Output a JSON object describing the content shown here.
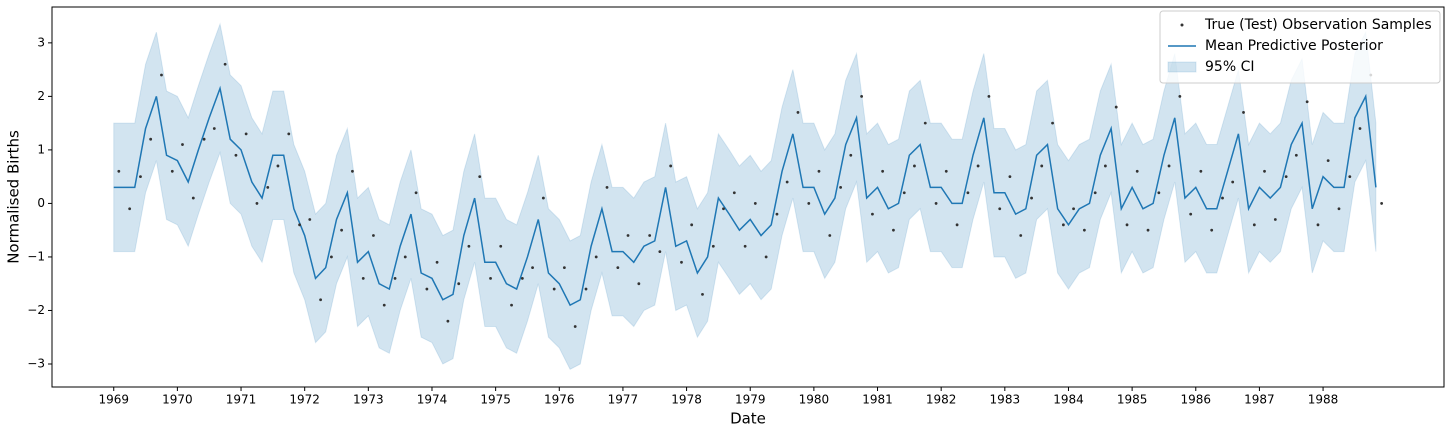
{
  "chart_data": {
    "type": "line",
    "xlabel": "Date",
    "ylabel": "Normalised Births",
    "xlim": [
      1968.03,
      1989.9
    ],
    "ylim": [
      -3.43,
      3.67
    ],
    "xticks": [
      1969,
      1970,
      1971,
      1972,
      1973,
      1974,
      1975,
      1976,
      1977,
      1978,
      1979,
      1980,
      1981,
      1982,
      1983,
      1984,
      1985,
      1986,
      1987,
      1988
    ],
    "yticks": [
      {
        "value": -3,
        "label": "−3"
      },
      {
        "value": -2,
        "label": "−2"
      },
      {
        "value": -1,
        "label": "−1"
      },
      0,
      1,
      2,
      3
    ],
    "legend": "upper right",
    "series": [
      {
        "name": "True (Test) Observation Samples",
        "kind": "scatter",
        "color": "#333333",
        "x": [
          1969.08,
          1969.25,
          1969.42,
          1969.58,
          1969.75,
          1969.92,
          1970.08,
          1970.25,
          1970.42,
          1970.58,
          1970.75,
          1970.92,
          1971.08,
          1971.25,
          1971.42,
          1971.58,
          1971.75,
          1971.92,
          1972.08,
          1972.25,
          1972.42,
          1972.58,
          1972.75,
          1972.92,
          1973.08,
          1973.25,
          1973.42,
          1973.58,
          1973.75,
          1973.92,
          1974.08,
          1974.25,
          1974.42,
          1974.58,
          1974.75,
          1974.92,
          1975.08,
          1975.25,
          1975.42,
          1975.58,
          1975.75,
          1975.92,
          1976.08,
          1976.25,
          1976.42,
          1976.58,
          1976.75,
          1976.92,
          1977.08,
          1977.25,
          1977.42,
          1977.58,
          1977.75,
          1977.92,
          1978.08,
          1978.25,
          1978.42,
          1978.58,
          1978.75,
          1978.92,
          1979.08,
          1979.25,
          1979.42,
          1979.58,
          1979.75,
          1979.92,
          1980.08,
          1980.25,
          1980.42,
          1980.58,
          1980.75,
          1980.92,
          1981.08,
          1981.25,
          1981.42,
          1981.58,
          1981.75,
          1981.92,
          1982.08,
          1982.25,
          1982.42,
          1982.58,
          1982.75,
          1982.92,
          1983.08,
          1983.25,
          1983.42,
          1983.58,
          1983.75,
          1983.92,
          1984.08,
          1984.25,
          1984.42,
          1984.58,
          1984.75,
          1984.92,
          1985.08,
          1985.25,
          1985.42,
          1985.58,
          1985.75,
          1985.92,
          1986.08,
          1986.25,
          1986.42,
          1986.58,
          1986.75,
          1986.92,
          1987.08,
          1987.25,
          1987.42,
          1987.58,
          1987.75,
          1987.92,
          1988.08,
          1988.25,
          1988.42,
          1988.58,
          1988.75,
          1988.92
        ],
        "values": [
          0.6,
          -0.1,
          0.5,
          1.2,
          2.4,
          0.6,
          1.1,
          0.1,
          1.2,
          1.4,
          2.6,
          0.9,
          1.3,
          0.0,
          0.3,
          0.7,
          1.3,
          -0.4,
          -0.3,
          -1.8,
          -1.0,
          -0.5,
          0.6,
          -1.4,
          -0.6,
          -1.9,
          -1.4,
          -1.0,
          0.2,
          -1.6,
          -1.1,
          -2.2,
          -1.5,
          -0.8,
          0.5,
          -1.4,
          -0.8,
          -1.9,
          -1.4,
          -1.2,
          0.1,
          -1.6,
          -1.2,
          -2.3,
          -1.6,
          -1.0,
          0.3,
          -1.2,
          -0.6,
          -1.5,
          -0.6,
          -0.9,
          0.7,
          -1.1,
          -0.4,
          -1.7,
          -0.8,
          -0.1,
          0.2,
          -0.8,
          0.0,
          -1.0,
          -0.2,
          0.4,
          1.7,
          0.0,
          0.6,
          -0.6,
          0.3,
          0.9,
          2.0,
          -0.2,
          0.6,
          -0.5,
          0.2,
          0.7,
          1.5,
          0.0,
          0.6,
          -0.4,
          0.2,
          0.7,
          2.0,
          -0.1,
          0.5,
          -0.6,
          0.1,
          0.7,
          1.5,
          -0.4,
          -0.1,
          -0.5,
          0.2,
          0.7,
          1.8,
          -0.4,
          0.6,
          -0.5,
          0.2,
          0.7,
          2.0,
          -0.2,
          0.6,
          -0.5,
          0.1,
          0.4,
          1.7,
          -0.4,
          0.6,
          -0.3,
          0.5,
          0.9,
          1.9,
          -0.4,
          0.8,
          -0.1,
          0.5,
          1.4,
          2.4,
          0.0
        ]
      },
      {
        "name": "Mean Predictive Posterior",
        "kind": "line",
        "color": "#1f77b4",
        "x": [
          1969,
          1969.17,
          1969.33,
          1969.5,
          1969.67,
          1969.83,
          1970,
          1970.17,
          1970.33,
          1970.5,
          1970.67,
          1970.83,
          1971,
          1971.17,
          1971.33,
          1971.5,
          1971.67,
          1971.83,
          1972,
          1972.17,
          1972.33,
          1972.5,
          1972.67,
          1972.83,
          1973,
          1973.17,
          1973.33,
          1973.5,
          1973.67,
          1973.83,
          1974,
          1974.17,
          1974.33,
          1974.5,
          1974.67,
          1974.83,
          1975,
          1975.17,
          1975.33,
          1975.5,
          1975.67,
          1975.83,
          1976,
          1976.17,
          1976.33,
          1976.5,
          1976.67,
          1976.83,
          1977,
          1977.17,
          1977.33,
          1977.5,
          1977.67,
          1977.83,
          1978,
          1978.17,
          1978.33,
          1978.5,
          1978.67,
          1978.83,
          1979,
          1979.17,
          1979.33,
          1979.5,
          1979.67,
          1979.83,
          1980,
          1980.17,
          1980.33,
          1980.5,
          1980.67,
          1980.83,
          1981,
          1981.17,
          1981.33,
          1981.5,
          1981.67,
          1981.83,
          1982,
          1982.17,
          1982.33,
          1982.5,
          1982.67,
          1982.83,
          1983,
          1983.17,
          1983.33,
          1983.5,
          1983.67,
          1983.83,
          1984,
          1984.17,
          1984.33,
          1984.5,
          1984.67,
          1984.83,
          1985,
          1985.17,
          1985.33,
          1985.5,
          1985.67,
          1985.83,
          1986,
          1986.17,
          1986.33,
          1986.5,
          1986.67,
          1986.83,
          1987,
          1987.17,
          1987.33,
          1987.5,
          1987.67,
          1987.83,
          1988,
          1988.17,
          1988.33,
          1988.5,
          1988.67,
          1988.83
        ],
        "values": [
          0.3,
          0.3,
          0.3,
          1.4,
          2.0,
          0.9,
          0.8,
          0.4,
          1.0,
          1.6,
          2.15,
          1.2,
          1.0,
          0.4,
          0.1,
          0.9,
          0.9,
          -0.1,
          -0.6,
          -1.4,
          -1.2,
          -0.3,
          0.2,
          -1.1,
          -0.9,
          -1.5,
          -1.6,
          -0.8,
          -0.2,
          -1.3,
          -1.4,
          -1.8,
          -1.7,
          -0.6,
          0.1,
          -1.1,
          -1.1,
          -1.5,
          -1.6,
          -1.0,
          -0.3,
          -1.3,
          -1.5,
          -1.9,
          -1.8,
          -0.8,
          -0.1,
          -0.9,
          -0.9,
          -1.1,
          -0.8,
          -0.7,
          0.3,
          -0.8,
          -0.7,
          -1.3,
          -1.0,
          0.1,
          -0.2,
          -0.5,
          -0.3,
          -0.6,
          -0.4,
          0.6,
          1.3,
          0.3,
          0.3,
          -0.2,
          0.1,
          1.1,
          1.6,
          0.1,
          0.3,
          -0.1,
          0.0,
          0.9,
          1.1,
          0.3,
          0.3,
          0.0,
          0.0,
          0.9,
          1.6,
          0.2,
          0.2,
          -0.2,
          -0.1,
          0.9,
          1.1,
          -0.1,
          -0.4,
          -0.1,
          0.0,
          0.9,
          1.4,
          -0.1,
          0.3,
          -0.1,
          0.0,
          0.9,
          1.6,
          0.1,
          0.3,
          -0.1,
          -0.1,
          0.6,
          1.3,
          -0.1,
          0.3,
          0.1,
          0.3,
          1.1,
          1.5,
          -0.1,
          0.5,
          0.3,
          0.3,
          1.6,
          2.0,
          0.3
        ]
      },
      {
        "name": "95% CI",
        "kind": "band",
        "color": "#1f77b4",
        "x": [
          1969,
          1969.17,
          1969.33,
          1969.5,
          1969.67,
          1969.83,
          1970,
          1970.17,
          1970.33,
          1970.5,
          1970.67,
          1970.83,
          1971,
          1971.17,
          1971.33,
          1971.5,
          1971.67,
          1971.83,
          1972,
          1972.17,
          1972.33,
          1972.5,
          1972.67,
          1972.83,
          1973,
          1973.17,
          1973.33,
          1973.5,
          1973.67,
          1973.83,
          1974,
          1974.17,
          1974.33,
          1974.5,
          1974.67,
          1974.83,
          1975,
          1975.17,
          1975.33,
          1975.5,
          1975.67,
          1975.83,
          1976,
          1976.17,
          1976.33,
          1976.5,
          1976.67,
          1976.83,
          1977,
          1977.17,
          1977.33,
          1977.5,
          1977.67,
          1977.83,
          1978,
          1978.17,
          1978.33,
          1978.5,
          1978.67,
          1978.83,
          1979,
          1979.17,
          1979.33,
          1979.5,
          1979.67,
          1979.83,
          1980,
          1980.17,
          1980.33,
          1980.5,
          1980.67,
          1980.83,
          1981,
          1981.17,
          1981.33,
          1981.5,
          1981.67,
          1981.83,
          1982,
          1982.17,
          1982.33,
          1982.5,
          1982.67,
          1982.83,
          1983,
          1983.17,
          1983.33,
          1983.5,
          1983.67,
          1983.83,
          1984,
          1984.17,
          1984.33,
          1984.5,
          1984.67,
          1984.83,
          1985,
          1985.17,
          1985.33,
          1985.5,
          1985.67,
          1985.83,
          1986,
          1986.17,
          1986.33,
          1986.5,
          1986.67,
          1986.83,
          1987,
          1987.17,
          1987.33,
          1987.5,
          1987.67,
          1987.83,
          1988,
          1988.17,
          1988.33,
          1988.5,
          1988.67,
          1988.83
        ],
        "upper": [
          1.5,
          1.5,
          1.5,
          2.6,
          3.2,
          2.1,
          2.0,
          1.6,
          2.2,
          2.8,
          3.35,
          2.4,
          2.2,
          1.6,
          1.3,
          2.1,
          2.1,
          1.1,
          0.6,
          -0.2,
          0,
          0.9,
          1.4,
          0.1,
          0.3,
          -0.3,
          -0.4,
          0.4,
          1.0,
          -0.1,
          -0.2,
          -0.6,
          -0.5,
          0.6,
          1.3,
          0.1,
          0.1,
          -0.3,
          -0.4,
          0.2,
          0.9,
          -0.1,
          -0.3,
          -0.7,
          -0.6,
          0.4,
          1.1,
          0.3,
          0.3,
          0.1,
          0.4,
          0.5,
          1.5,
          0.4,
          0.5,
          -0.1,
          0.2,
          1.3,
          1.0,
          0.7,
          0.9,
          0.6,
          0.8,
          1.8,
          2.5,
          1.5,
          1.5,
          1.0,
          1.3,
          2.3,
          2.8,
          1.3,
          1.5,
          1.1,
          1.2,
          2.1,
          2.3,
          1.5,
          1.5,
          1.2,
          1.2,
          2.1,
          2.8,
          1.4,
          1.4,
          1.0,
          1.1,
          2.1,
          2.3,
          1.1,
          0.8,
          1.1,
          1.2,
          2.1,
          2.6,
          1.1,
          1.5,
          1.1,
          1.2,
          2.1,
          2.8,
          1.3,
          1.5,
          1.1,
          1.1,
          1.8,
          2.5,
          1.1,
          1.5,
          1.3,
          1.5,
          2.3,
          2.7,
          1.1,
          1.7,
          1.5,
          1.5,
          2.8,
          3.2,
          1.5
        ],
        "lower": [
          -0.9,
          -0.9,
          -0.9,
          0.2,
          0.8,
          -0.3,
          -0.4,
          -0.8,
          -0.2,
          0.4,
          0.95,
          0,
          -0.2,
          -0.8,
          -1.1,
          -0.3,
          -0.3,
          -1.3,
          -1.8,
          -2.6,
          -2.4,
          -1.5,
          -1.0,
          -2.3,
          -2.1,
          -2.7,
          -2.8,
          -2.0,
          -1.4,
          -2.5,
          -2.6,
          -3.0,
          -2.9,
          -1.8,
          -1.1,
          -2.3,
          -2.3,
          -2.7,
          -2.8,
          -2.2,
          -1.5,
          -2.5,
          -2.7,
          -3.1,
          -3.0,
          -2.0,
          -1.3,
          -2.1,
          -2.1,
          -2.3,
          -2.0,
          -1.9,
          -0.9,
          -2.0,
          -1.9,
          -2.5,
          -2.2,
          -1.1,
          -1.4,
          -1.7,
          -1.5,
          -1.8,
          -1.6,
          -0.6,
          0.1,
          -0.9,
          -0.9,
          -1.4,
          -1.1,
          -0.1,
          0.4,
          -1.1,
          -0.9,
          -1.3,
          -1.2,
          -0.3,
          -0.1,
          -0.9,
          -0.9,
          -1.2,
          -1.2,
          -0.3,
          0.4,
          -1.0,
          -1.0,
          -1.4,
          -1.3,
          -0.3,
          -0.1,
          -1.3,
          -1.6,
          -1.3,
          -1.2,
          -0.3,
          0.2,
          -1.3,
          -0.9,
          -1.3,
          -1.2,
          -0.3,
          0.4,
          -1.1,
          -0.9,
          -1.3,
          -1.3,
          -0.6,
          0.1,
          -1.3,
          -0.9,
          -1.1,
          -0.9,
          -0.1,
          0.3,
          -1.3,
          -0.7,
          -0.9,
          -0.9,
          0.4,
          0.8,
          -0.9
        ]
      }
    ]
  }
}
